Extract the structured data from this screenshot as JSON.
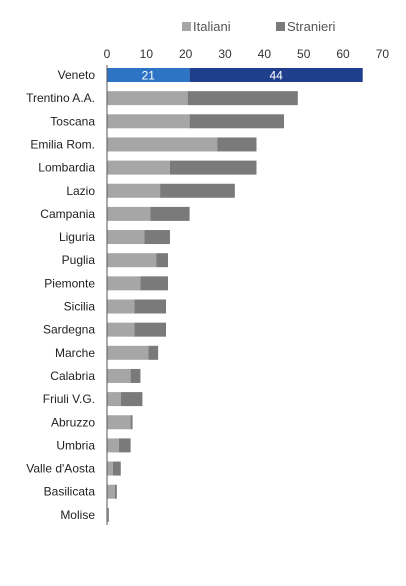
{
  "chart_data": {
    "type": "bar",
    "orientation": "horizontal",
    "stacked": true,
    "title": "",
    "xlabel": "",
    "ylabel": "",
    "xlim": [
      0,
      70
    ],
    "xticks": [
      0,
      10,
      20,
      30,
      40,
      50,
      60,
      70
    ],
    "xtick_labels": [
      "0",
      "10",
      "20",
      "30",
      "40",
      "50",
      "60",
      "70"
    ],
    "xaxis_position": "top",
    "grid": false,
    "legend": {
      "position": "top"
    },
    "categories": [
      "Veneto",
      "Trentino A.A.",
      "Toscana",
      "Emilia Rom.",
      "Lombardia",
      "Lazio",
      "Campania",
      "Liguria",
      "Puglia",
      "Piemonte",
      "Sicilia",
      "Sardegna",
      "Marche",
      "Calabria",
      "Friuli V.G.",
      "Abruzzo",
      "Umbria",
      "Valle d'Aosta",
      "Basilicata",
      "Molise"
    ],
    "series": [
      {
        "name": "Italiani",
        "values": [
          21,
          20.5,
          21,
          28,
          16,
          13.5,
          11,
          9.5,
          12.5,
          8.5,
          7,
          7,
          10.5,
          6,
          3.5,
          6,
          3,
          1.5,
          2,
          0.3
        ]
      },
      {
        "name": "Stranieri",
        "values": [
          44,
          28,
          24,
          10,
          22,
          19,
          10,
          6.5,
          3,
          7,
          8,
          8,
          2.5,
          2.5,
          5.5,
          0.5,
          3,
          2,
          0.5,
          0.2
        ]
      }
    ],
    "data_labels": [
      {
        "category": "Veneto",
        "series": "Italiani",
        "text": "21"
      },
      {
        "category": "Veneto",
        "series": "Stranieri",
        "text": "44"
      }
    ],
    "colors": {
      "italiani": "#a6a6a6",
      "stranieri": "#7a7a7a",
      "highlight_italiani": "#2e74c4",
      "highlight_stranieri": "#1f3f8c",
      "axis": "#555555"
    },
    "highlight_category": "Veneto"
  }
}
